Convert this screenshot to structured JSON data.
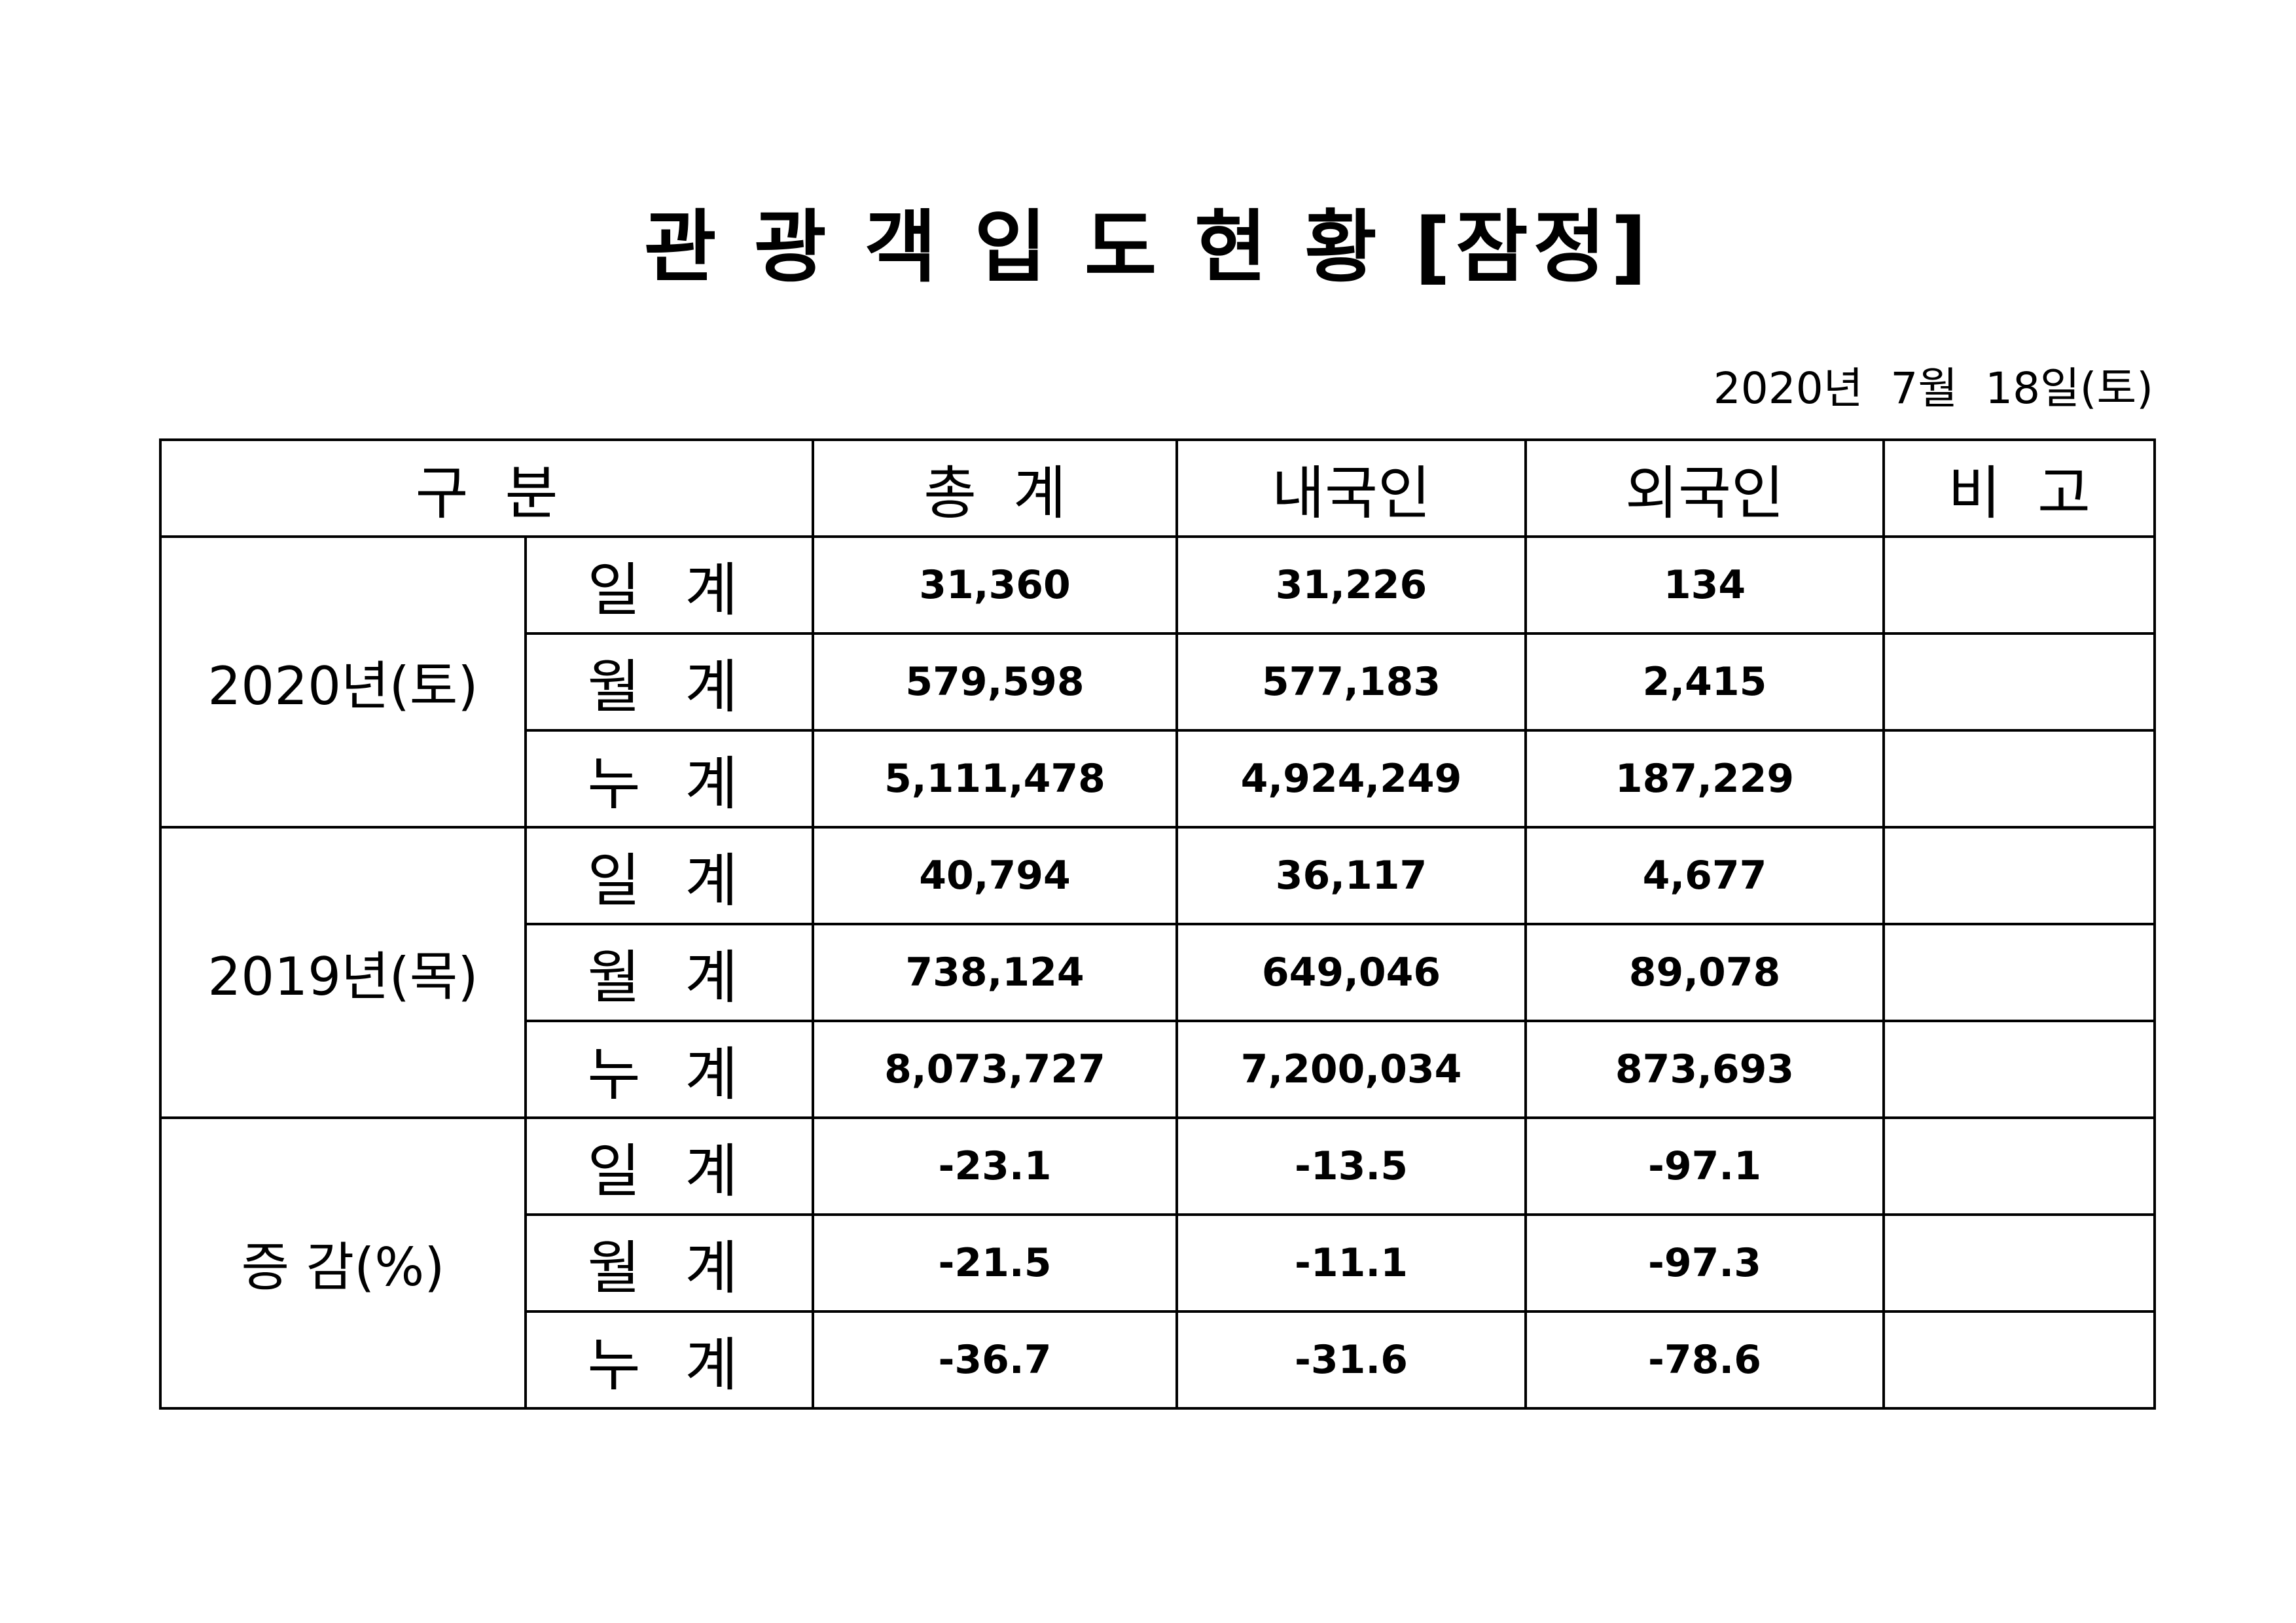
{
  "title": "관 광 객 입 도 현 황 [잠정]",
  "date": "2020년  7월  18일(토)",
  "table": {
    "header": [
      "구  분",
      "총  계",
      "내국인",
      "외국인",
      "비  고"
    ],
    "groups": [
      {
        "label": "2020년(토)",
        "rows": [
          {
            "label": "일 계",
            "values": [
              "31,360",
              "31,226",
              "134"
            ]
          },
          {
            "label": "월 계",
            "values": [
              "579,598",
              "577,183",
              "2,415"
            ]
          },
          {
            "label": "누 계",
            "values": [
              "5,111,478",
              "4,924,249",
              "187,229"
            ]
          }
        ]
      },
      {
        "label": "2019년(목)",
        "rows": [
          {
            "label": "일 계",
            "values": [
              "40,794",
              "36,117",
              "4,677"
            ]
          },
          {
            "label": "월 계",
            "values": [
              "738,124",
              "649,046",
              "89,078"
            ]
          },
          {
            "label": "누 계",
            "values": [
              "8,073,727",
              "7,200,034",
              "873,693"
            ]
          }
        ]
      },
      {
        "label": "증 감(%)",
        "rows": [
          {
            "label": "일 계",
            "values": [
              "-23.1",
              "-13.5",
              "-97.1"
            ]
          },
          {
            "label": "월 계",
            "values": [
              "-21.5",
              "-11.1",
              "-97.3"
            ]
          },
          {
            "label": "누 계",
            "values": [
              "-36.7",
              "-31.6",
              "-78.6"
            ]
          }
        ]
      }
    ]
  }
}
